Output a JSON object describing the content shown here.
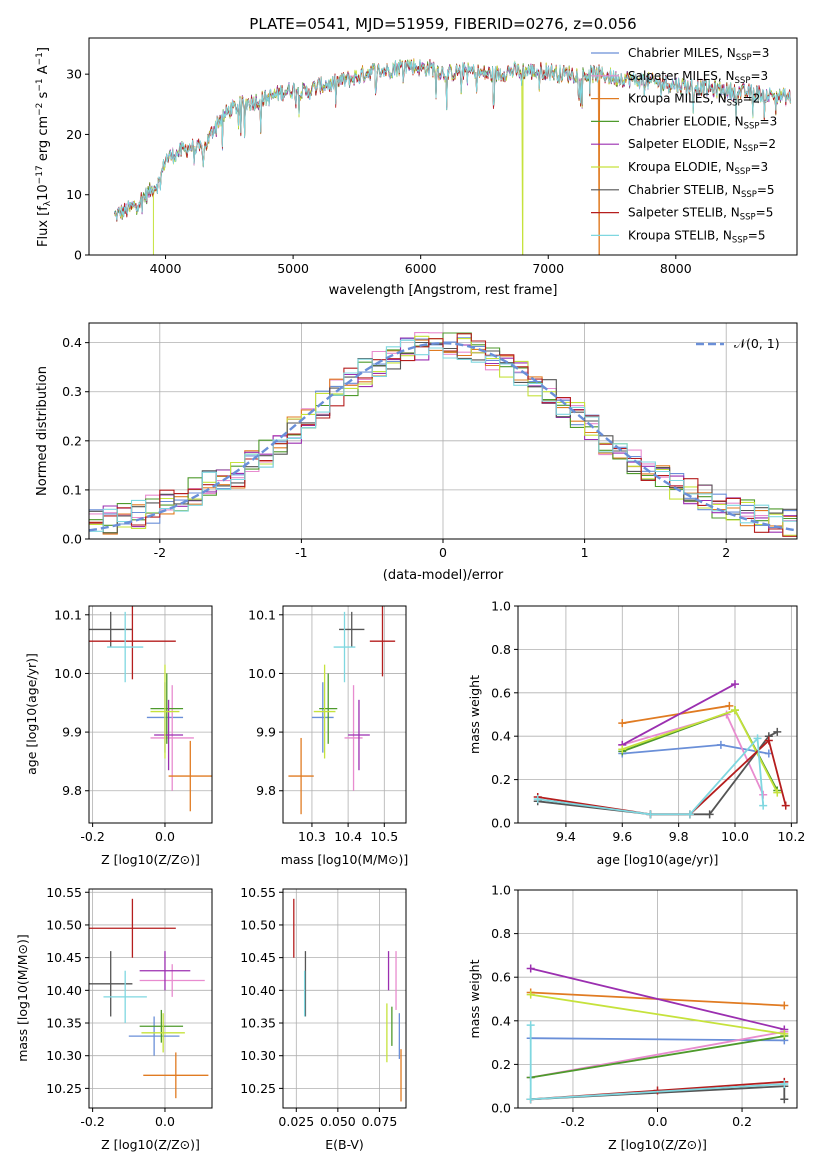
{
  "colors": {
    "Chabrier MILES": "#6a8fd8",
    "Salpeter MILES": "#e88ccf",
    "Kroupa MILES": "#e07b22",
    "Chabrier ELODIE": "#4e9a2c",
    "Salpeter ELODIE": "#9b2fb0",
    "Kroupa ELODIE": "#c6e23c",
    "Chabrier STELIB": "#555555",
    "Salpeter STELIB": "#b51e1e",
    "Kroupa STELIB": "#7fd7e0"
  },
  "chart_data": [
    {
      "id": "spectrum",
      "type": "line",
      "title": "PLATE=0541, MJD=51959, FIBERID=0276, z=0.056",
      "xlabel": "wavelength [Angstrom, rest frame]",
      "ylabel": "Flux [f_λ10^-17 erg cm^-2 s^-1 A^-1]",
      "xlim": [
        3400,
        8950
      ],
      "ylim": [
        0,
        36
      ],
      "xticks": [
        4000,
        5000,
        6000,
        7000,
        8000
      ],
      "yticks": [
        0,
        10,
        20,
        30
      ],
      "continuum": [
        [
          3600,
          6.5
        ],
        [
          3750,
          8
        ],
        [
          3850,
          10
        ],
        [
          3950,
          12
        ],
        [
          4000,
          16
        ],
        [
          4100,
          17
        ],
        [
          4200,
          18
        ],
        [
          4300,
          17.5
        ],
        [
          4400,
          22
        ],
        [
          4500,
          24
        ],
        [
          4600,
          25
        ],
        [
          4700,
          25.5
        ],
        [
          4800,
          26
        ],
        [
          4900,
          27
        ],
        [
          5000,
          27.5
        ],
        [
          5100,
          27
        ],
        [
          5200,
          28
        ],
        [
          5300,
          28.5
        ],
        [
          5400,
          29
        ],
        [
          5500,
          29.5
        ],
        [
          5600,
          30.5
        ],
        [
          5700,
          30.5
        ],
        [
          5800,
          31
        ],
        [
          5900,
          31.5
        ],
        [
          6000,
          31
        ],
        [
          6100,
          31
        ],
        [
          6200,
          30
        ],
        [
          6300,
          30.5
        ],
        [
          6400,
          30.5
        ],
        [
          6500,
          30
        ],
        [
          6600,
          30
        ],
        [
          6700,
          30.5
        ],
        [
          6800,
          30.5
        ],
        [
          6900,
          30.5
        ],
        [
          7000,
          30.5
        ],
        [
          7100,
          30
        ],
        [
          7200,
          30
        ],
        [
          7300,
          30
        ],
        [
          7400,
          30
        ],
        [
          7500,
          29.5
        ],
        [
          7700,
          29
        ],
        [
          7900,
          28.5
        ],
        [
          8100,
          28
        ],
        [
          8300,
          27.5
        ],
        [
          8500,
          27
        ],
        [
          8800,
          26.5
        ],
        [
          8900,
          26
        ]
      ],
      "legend": [
        {
          "label": "Chabrier MILES, N",
          "n": "=3"
        },
        {
          "label": "Salpeter MILES, N",
          "n": "=3"
        },
        {
          "label": "Kroupa MILES, N",
          "n": "=2"
        },
        {
          "label": "Chabrier ELODIE, N",
          "n": "=3"
        },
        {
          "label": "Salpeter ELODIE, N",
          "n": "=2"
        },
        {
          "label": "Kroupa ELODIE, N",
          "n": "=3"
        },
        {
          "label": "Chabrier STELIB, N",
          "n": "=5"
        },
        {
          "label": "Salpeter STELIB, N",
          "n": "=5"
        },
        {
          "label": "Kroupa STELIB, N",
          "n": "=5"
        }
      ],
      "legend_sub": "SSP"
    },
    {
      "id": "residuals",
      "type": "line",
      "xlabel": "(data-model)/error",
      "ylabel": "Normed distribution",
      "xlim": [
        -2.5,
        2.5
      ],
      "ylim": [
        0,
        0.44
      ],
      "xticks": [
        -2,
        -1,
        0,
        1,
        2
      ],
      "yticks": [
        0.0,
        0.1,
        0.2,
        0.3,
        0.4
      ],
      "bin_width": 0.1,
      "gaussian_label": "N(0,1)",
      "grid": true
    },
    {
      "id": "age-Z",
      "type": "scatter",
      "xlabel": "Z [log10(Z/Z⊙)]",
      "ylabel": "age  [log10(age/yr)]",
      "xlim": [
        -0.21,
        0.13
      ],
      "ylim": [
        9.745,
        10.115
      ],
      "xticks": [
        -0.2,
        0.0
      ],
      "yticks": [
        9.8,
        9.9,
        10.0,
        10.1
      ],
      "points": [
        {
          "m": "Chabrier MILES",
          "x": 0.0,
          "y": 9.925,
          "xe": 0.05,
          "ye": 0.06
        },
        {
          "m": "Salpeter MILES",
          "x": 0.02,
          "y": 9.89,
          "xe": 0.06,
          "ye": 0.09
        },
        {
          "m": "Kroupa MILES",
          "x": 0.07,
          "y": 9.825,
          "xe": 0.06,
          "ye": 0.06
        },
        {
          "m": "Chabrier ELODIE",
          "x": 0.005,
          "y": 9.94,
          "xe": 0.045,
          "ye": 0.06
        },
        {
          "m": "Salpeter ELODIE",
          "x": 0.01,
          "y": 9.895,
          "xe": 0.04,
          "ye": 0.06
        },
        {
          "m": "Kroupa ELODIE",
          "x": 0.0,
          "y": 9.935,
          "xe": 0.04,
          "ye": 0.08
        },
        {
          "m": "Chabrier STELIB",
          "x": -0.15,
          "y": 10.075,
          "xe": 0.06,
          "ye": 0.03
        },
        {
          "m": "Salpeter STELIB",
          "x": -0.09,
          "y": 10.055,
          "xe": 0.12,
          "ye": 0.065
        },
        {
          "m": "Kroupa STELIB",
          "x": -0.11,
          "y": 10.045,
          "xe": 0.05,
          "ye": 0.06
        }
      ]
    },
    {
      "id": "age-mass",
      "type": "scatter",
      "xlabel": "mass [log10(M/M⊙)]",
      "ylabel": "",
      "xlim": [
        10.22,
        10.56
      ],
      "ylim": [
        9.745,
        10.115
      ],
      "xticks": [
        10.3,
        10.4,
        10.5
      ],
      "yticks": [
        9.8,
        9.9,
        10.0,
        10.1
      ],
      "points": [
        {
          "m": "Chabrier MILES",
          "x": 10.33,
          "y": 9.925,
          "xe": 0.03,
          "ye": 0.06
        },
        {
          "m": "Salpeter MILES",
          "x": 10.415,
          "y": 9.89,
          "xe": 0.025,
          "ye": 0.09
        },
        {
          "m": "Kroupa MILES",
          "x": 10.27,
          "y": 9.825,
          "xe": 0.035,
          "ye": 0.065
        },
        {
          "m": "Chabrier ELODIE",
          "x": 10.345,
          "y": 9.94,
          "xe": 0.025,
          "ye": 0.06
        },
        {
          "m": "Salpeter ELODIE",
          "x": 10.43,
          "y": 9.895,
          "xe": 0.03,
          "ye": 0.06
        },
        {
          "m": "Kroupa ELODIE",
          "x": 10.335,
          "y": 9.935,
          "xe": 0.03,
          "ye": 0.08
        },
        {
          "m": "Chabrier STELIB",
          "x": 10.41,
          "y": 10.075,
          "xe": 0.035,
          "ye": 0.03
        },
        {
          "m": "Salpeter STELIB",
          "x": 10.495,
          "y": 10.055,
          "xe": 0.035,
          "ye": 0.06
        },
        {
          "m": "Kroupa STELIB",
          "x": 10.39,
          "y": 10.045,
          "xe": 0.03,
          "ye": 0.06
        }
      ]
    },
    {
      "id": "weight-age",
      "type": "line",
      "xlabel": "age  [log10(age/yr)]",
      "ylabel": "mass weight",
      "xlim": [
        9.23,
        10.22
      ],
      "ylim": [
        0,
        1
      ],
      "xticks": [
        9.4,
        9.6,
        9.8,
        10.0,
        10.2
      ],
      "yticks": [
        0.0,
        0.2,
        0.4,
        0.6,
        0.8,
        1.0
      ],
      "series": [
        {
          "m": "Chabrier MILES",
          "x": [
            9.6,
            9.95,
            10.12
          ],
          "y": [
            0.32,
            0.36,
            0.32
          ]
        },
        {
          "m": "Salpeter MILES",
          "x": [
            9.6,
            9.97,
            10.1
          ],
          "y": [
            0.36,
            0.5,
            0.13
          ]
        },
        {
          "m": "Kroupa MILES",
          "x": [
            9.6,
            9.98
          ],
          "y": [
            0.46,
            0.54
          ]
        },
        {
          "m": "Chabrier ELODIE",
          "x": [
            9.6,
            10.0,
            10.15
          ],
          "y": [
            0.33,
            0.52,
            0.15
          ]
        },
        {
          "m": "Salpeter ELODIE",
          "x": [
            9.6,
            10.0
          ],
          "y": [
            0.36,
            0.64
          ]
        },
        {
          "m": "Kroupa ELODIE",
          "x": [
            9.6,
            10.0,
            10.15
          ],
          "y": [
            0.34,
            0.52,
            0.14
          ]
        },
        {
          "m": "Chabrier STELIB",
          "x": [
            9.3,
            9.7,
            9.91,
            10.12,
            10.15
          ],
          "y": [
            0.1,
            0.04,
            0.04,
            0.4,
            0.42
          ]
        },
        {
          "m": "Salpeter STELIB",
          "x": [
            9.3,
            9.7,
            9.84,
            10.12,
            10.18
          ],
          "y": [
            0.12,
            0.04,
            0.04,
            0.38,
            0.08
          ]
        },
        {
          "m": "Kroupa STELIB",
          "x": [
            9.3,
            9.7,
            9.84,
            10.08,
            10.1
          ],
          "y": [
            0.11,
            0.04,
            0.04,
            0.39,
            0.08
          ]
        }
      ]
    },
    {
      "id": "mass-Z",
      "type": "scatter",
      "xlabel": "Z [log10(Z/Z⊙)]",
      "ylabel": "mass [log10(M/M⊙)]",
      "xlim": [
        -0.21,
        0.13
      ],
      "ylim": [
        10.22,
        10.555
      ],
      "xticks": [
        -0.2,
        0.0
      ],
      "yticks": [
        10.25,
        10.3,
        10.35,
        10.4,
        10.45,
        10.5,
        10.55
      ],
      "points": [
        {
          "m": "Chabrier MILES",
          "x": -0.03,
          "y": 10.33,
          "xe": 0.07,
          "ye": 0.03
        },
        {
          "m": "Salpeter MILES",
          "x": 0.02,
          "y": 10.415,
          "xe": 0.09,
          "ye": 0.025
        },
        {
          "m": "Kroupa MILES",
          "x": 0.03,
          "y": 10.27,
          "xe": 0.09,
          "ye": 0.035
        },
        {
          "m": "Chabrier ELODIE",
          "x": -0.01,
          "y": 10.345,
          "xe": 0.06,
          "ye": 0.025
        },
        {
          "m": "Salpeter ELODIE",
          "x": 0.0,
          "y": 10.43,
          "xe": 0.07,
          "ye": 0.03
        },
        {
          "m": "Kroupa ELODIE",
          "x": -0.005,
          "y": 10.335,
          "xe": 0.06,
          "ye": 0.03
        },
        {
          "m": "Chabrier STELIB",
          "x": -0.15,
          "y": 10.41,
          "xe": 0.06,
          "ye": 0.05
        },
        {
          "m": "Salpeter STELIB",
          "x": -0.09,
          "y": 10.495,
          "xe": 0.12,
          "ye": 0.045
        },
        {
          "m": "Kroupa STELIB",
          "x": -0.11,
          "y": 10.39,
          "xe": 0.06,
          "ye": 0.04
        }
      ]
    },
    {
      "id": "mass-ebv",
      "type": "scatter",
      "xlabel": "E(B-V)",
      "ylabel": "",
      "xlim": [
        0.017,
        0.091
      ],
      "ylim": [
        10.22,
        10.555
      ],
      "xticks": [
        0.025,
        0.05,
        0.075
      ],
      "tick_labels": [
        "0.025",
        "0.050",
        "0.075"
      ],
      "yticks": [
        10.25,
        10.3,
        10.35,
        10.4,
        10.45,
        10.5,
        10.55
      ],
      "points": [
        {
          "m": "Chabrier MILES",
          "x": 0.087,
          "y": 10.33,
          "xe": 0,
          "ye": 0.035
        },
        {
          "m": "Salpeter MILES",
          "x": 0.085,
          "y": 10.415,
          "xe": 0,
          "ye": 0.045
        },
        {
          "m": "Kroupa MILES",
          "x": 0.088,
          "y": 10.27,
          "xe": 0,
          "ye": 0.04
        },
        {
          "m": "Chabrier ELODIE",
          "x": 0.0825,
          "y": 10.345,
          "xe": 0,
          "ye": 0.03
        },
        {
          "m": "Salpeter ELODIE",
          "x": 0.0805,
          "y": 10.43,
          "xe": 0,
          "ye": 0.03
        },
        {
          "m": "Kroupa ELODIE",
          "x": 0.0795,
          "y": 10.335,
          "xe": 0,
          "ye": 0.045
        },
        {
          "m": "Chabrier STELIB",
          "x": 0.0305,
          "y": 10.41,
          "xe": 0,
          "ye": 0.05
        },
        {
          "m": "Salpeter STELIB",
          "x": 0.0235,
          "y": 10.495,
          "xe": 0,
          "ye": 0.045
        },
        {
          "m": "Kroupa STELIB",
          "x": 0.03,
          "y": 10.395,
          "xe": 0,
          "ye": 0.035
        }
      ]
    },
    {
      "id": "weight-Z",
      "type": "line",
      "xlabel": "Z [log10(Z/Z⊙)]",
      "ylabel": "mass weight",
      "xlim": [
        -0.33,
        0.33
      ],
      "ylim": [
        0,
        1
      ],
      "xticks": [
        -0.2,
        0.0,
        0.2
      ],
      "yticks": [
        0.0,
        0.2,
        0.4,
        0.6,
        0.8,
        1.0
      ],
      "series": [
        {
          "m": "Chabrier MILES",
          "x": [
            -0.3,
            0.3
          ],
          "y": [
            0.32,
            0.31
          ]
        },
        {
          "m": "Salpeter MILES",
          "x": [
            -0.3,
            0.3
          ],
          "y": [
            0.14,
            0.35
          ]
        },
        {
          "m": "Kroupa MILES",
          "x": [
            -0.3,
            0.3
          ],
          "y": [
            0.53,
            0.47
          ]
        },
        {
          "m": "Chabrier ELODIE",
          "x": [
            -0.3,
            0.3
          ],
          "y": [
            0.14,
            0.33
          ]
        },
        {
          "m": "Salpeter ELODIE",
          "x": [
            -0.3,
            0.3
          ],
          "y": [
            0.64,
            0.36
          ]
        },
        {
          "m": "Kroupa ELODIE",
          "x": [
            -0.3,
            0.3
          ],
          "y": [
            0.52,
            0.34
          ]
        },
        {
          "m": "Chabrier STELIB",
          "x": [
            -0.3,
            0.3,
            0.3
          ],
          "y": [
            0.04,
            0.1,
            0.04
          ]
        },
        {
          "m": "Salpeter STELIB",
          "x": [
            -0.3,
            0.0,
            0.3
          ],
          "y": [
            0.04,
            0.08,
            0.12
          ]
        },
        {
          "m": "Kroupa STELIB",
          "x": [
            -0.3,
            -0.3,
            0.3
          ],
          "y": [
            0.38,
            0.04,
            0.11
          ]
        }
      ]
    }
  ]
}
